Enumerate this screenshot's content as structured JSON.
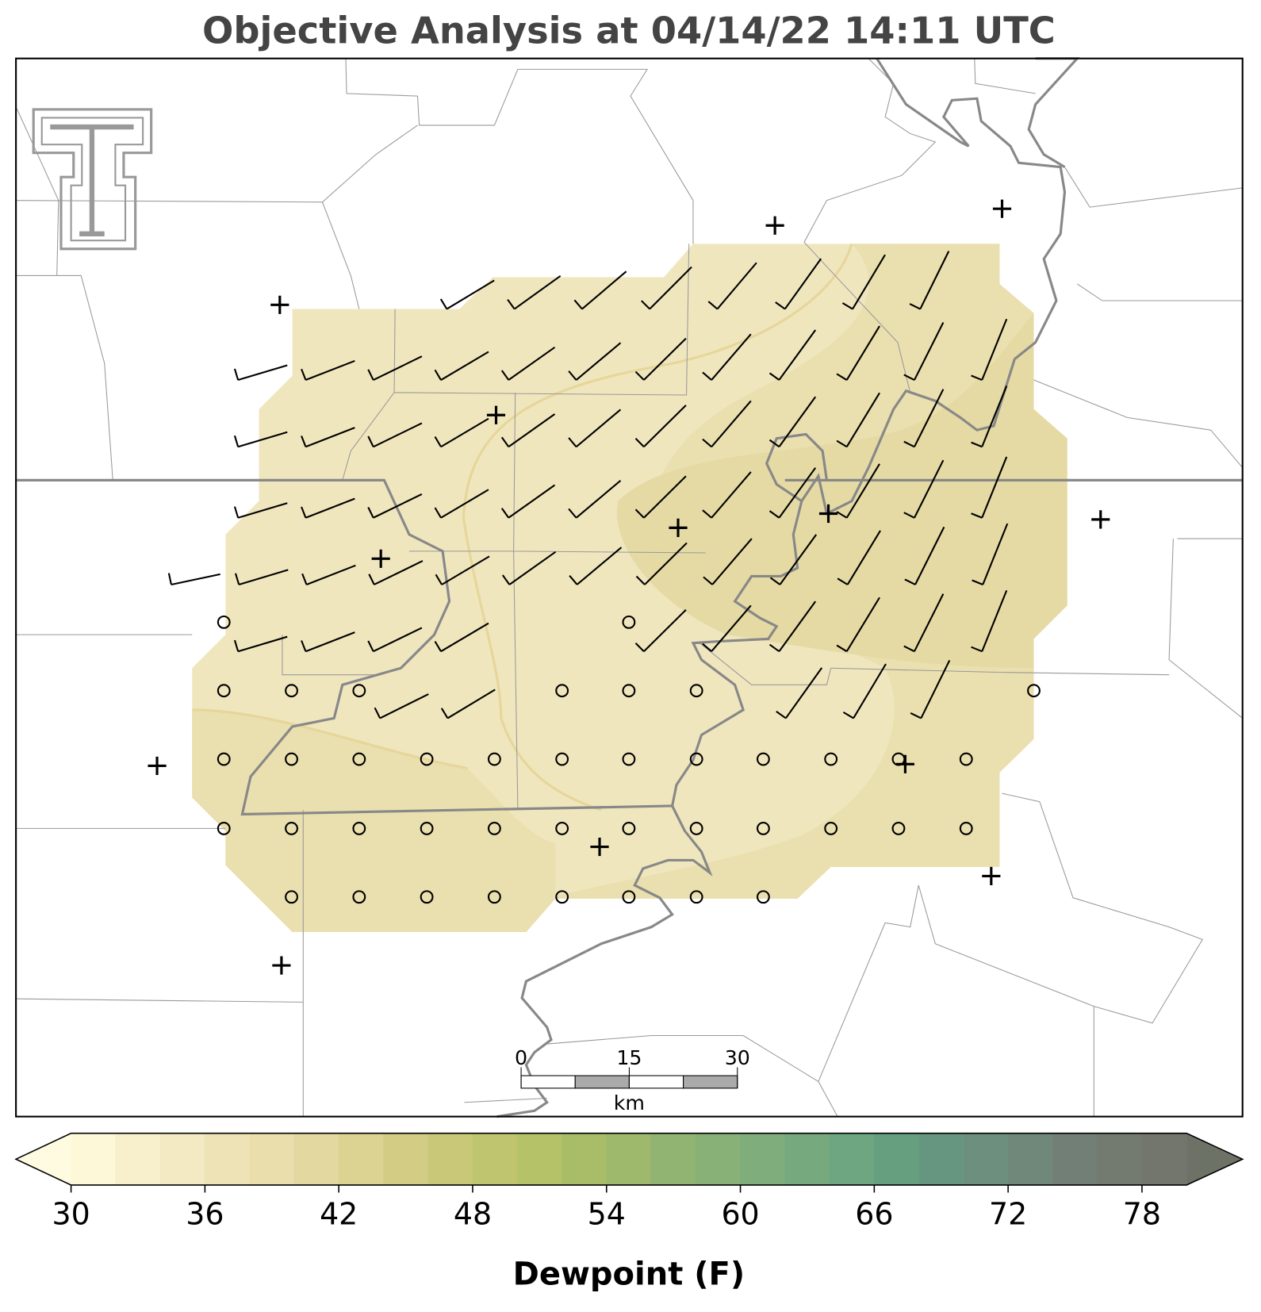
{
  "title": "Objective Analysis at 04/14/22 14:11 UTC",
  "colorbar": {
    "label": "Dewpoint (F)",
    "ticks": [
      30,
      36,
      42,
      48,
      54,
      60,
      66,
      72,
      78
    ],
    "boundaries": [
      30,
      32,
      34,
      36,
      38,
      40,
      42,
      44,
      46,
      48,
      50,
      52,
      54,
      56,
      58,
      60,
      62,
      64,
      66,
      68,
      70,
      72,
      74,
      76,
      78,
      80
    ],
    "colors": [
      "#fdf8d8",
      "#f8f0cc",
      "#f3e9c3",
      "#eee3b7",
      "#e9deac",
      "#e3d8a0",
      "#dcd292",
      "#d2cc84",
      "#c9c878",
      "#bfc56e",
      "#b6c268",
      "#a9bd68",
      "#9eb86c",
      "#92b472",
      "#88b177",
      "#7fad7b",
      "#76aa7e",
      "#6da680",
      "#659f80",
      "#679680",
      "#6d8f7e",
      "#70887a",
      "#727f76",
      "#737b71",
      "#72766d"
    ],
    "extend_colors": [
      "#fffbe0",
      "#6c7265"
    ]
  },
  "scale_bar": {
    "ticks": [
      0,
      15,
      30
    ],
    "unit": "km"
  }
}
